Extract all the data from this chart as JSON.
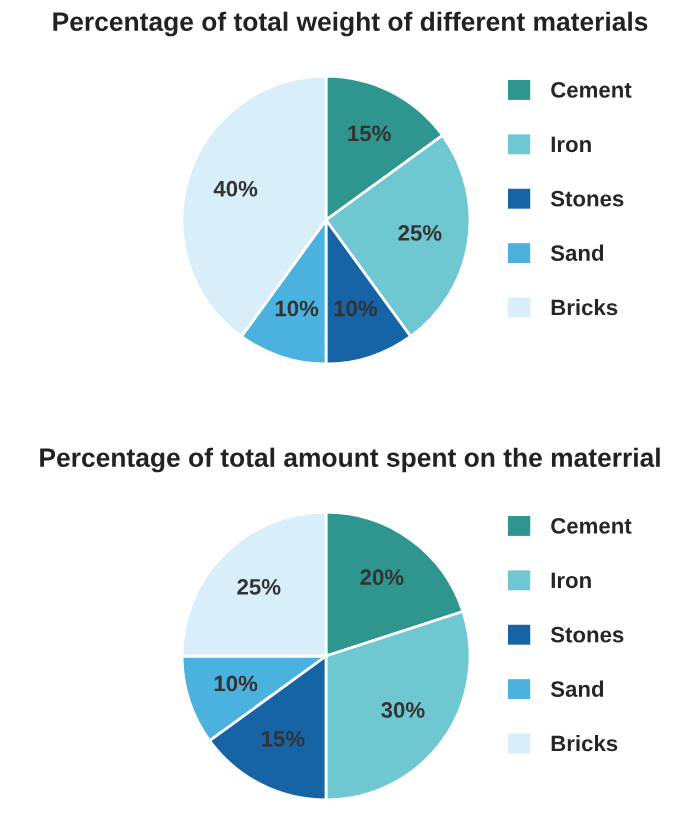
{
  "chart_data": [
    {
      "type": "pie",
      "title": "Percentage of total weight of different materials",
      "categories": [
        "Cement",
        "Iron",
        "Stones",
        "Sand",
        "Bricks"
      ],
      "values": [
        15,
        25,
        10,
        10,
        40
      ],
      "value_labels": [
        "15%",
        "25%",
        "10%",
        "10%",
        "40%"
      ],
      "colors": [
        "#2e968f",
        "#6fc8d1",
        "#1663a6",
        "#4bb2e0",
        "#d8eef8"
      ],
      "legend": "right"
    },
    {
      "type": "pie",
      "title": "Percentage of total amount spent on the materrial",
      "categories": [
        "Cement",
        "Iron",
        "Stones",
        "Sand",
        "Bricks"
      ],
      "values": [
        20,
        30,
        15,
        10,
        25
      ],
      "value_labels": [
        "20%",
        "30%",
        "15%",
        "10%",
        "25%"
      ],
      "colors": [
        "#2e968f",
        "#6fc8d1",
        "#1663a6",
        "#4bb2e0",
        "#d8eef8"
      ],
      "legend": "right"
    }
  ]
}
